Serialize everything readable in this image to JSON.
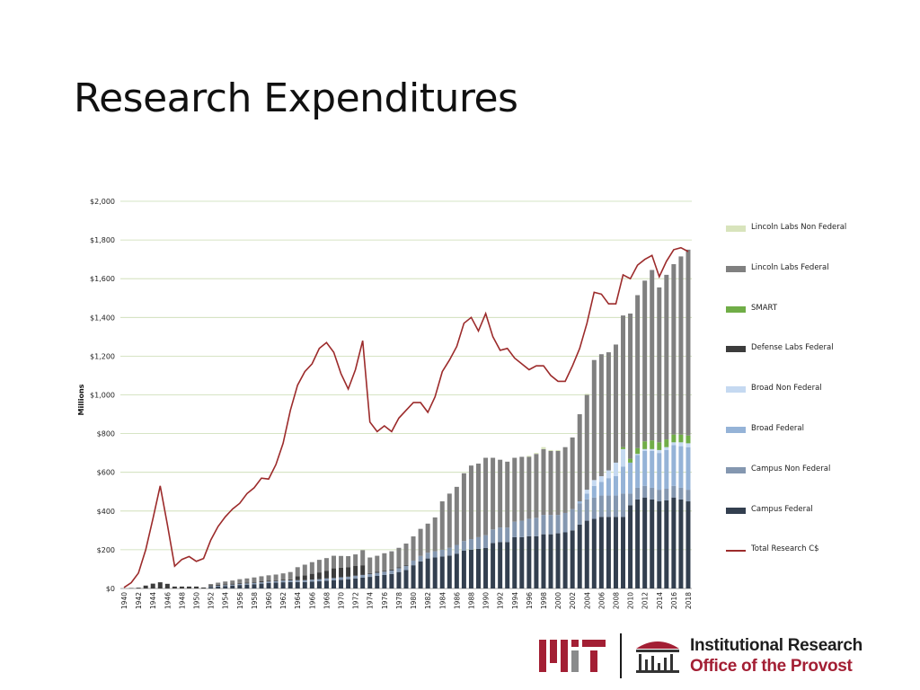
{
  "slide": {
    "title": "Research Expenditures"
  },
  "branding": {
    "logo_text": "MIT",
    "org_name": "Institutional Research",
    "org_sub": "Office of the Provost",
    "brand_red": "#a31f34",
    "brand_gray": "#8a8b8c"
  },
  "chart_data": {
    "type": "bar",
    "stacked": true,
    "ylabel": "Millions",
    "xlabel": "",
    "ylim": [
      0,
      2000
    ],
    "grid": true,
    "legend_position": "right",
    "y_ticks": [
      "$0",
      "$200",
      "$400",
      "$600",
      "$800",
      "$1,000",
      "$1,200",
      "$1,400",
      "$1,600",
      "$1,800",
      "$2,000"
    ],
    "x_tick_labels": [
      "1940",
      "1942",
      "1944",
      "1946",
      "1948",
      "1950",
      "1952",
      "1954",
      "1956",
      "1958",
      "1960",
      "1962",
      "1964",
      "1966",
      "1968",
      "1970",
      "1972",
      "1974",
      "1976",
      "1978",
      "1980",
      "1982",
      "1984",
      "1986",
      "1988",
      "1990",
      "1992",
      "1994",
      "1996",
      "1998",
      "2000",
      "2002",
      "2004",
      "2006",
      "2008",
      "2010",
      "2012",
      "2014",
      "2016",
      "2018"
    ],
    "years": [
      1940,
      1941,
      1942,
      1943,
      1944,
      1945,
      1946,
      1947,
      1948,
      1949,
      1950,
      1951,
      1952,
      1953,
      1954,
      1955,
      1956,
      1957,
      1958,
      1959,
      1960,
      1961,
      1962,
      1963,
      1964,
      1965,
      1966,
      1967,
      1968,
      1969,
      1970,
      1971,
      1972,
      1973,
      1974,
      1975,
      1976,
      1977,
      1978,
      1979,
      1980,
      1981,
      1982,
      1983,
      1984,
      1985,
      1986,
      1987,
      1988,
      1989,
      1990,
      1991,
      1992,
      1993,
      1994,
      1995,
      1996,
      1997,
      1998,
      1999,
      2000,
      2001,
      2002,
      2003,
      2004,
      2005,
      2006,
      2007,
      2008,
      2009,
      2010,
      2011,
      2012,
      2013,
      2014,
      2015,
      2016,
      2017,
      2018
    ],
    "series": [
      {
        "name": "Lincoln Labs Non Federal",
        "color": "#d8e4bc",
        "values": [
          0,
          0,
          0,
          0,
          0,
          0,
          0,
          0,
          0,
          0,
          0,
          0,
          0,
          0,
          0,
          0,
          0,
          0,
          0,
          0,
          0,
          0,
          0,
          0,
          0,
          0,
          0,
          0,
          0,
          0,
          0,
          0,
          0,
          0,
          0,
          0,
          0,
          0,
          0,
          0,
          0,
          0,
          0,
          0,
          0,
          0,
          0,
          0,
          0,
          0,
          0,
          0,
          0,
          0,
          0,
          0,
          5,
          5,
          10,
          5,
          5,
          0,
          0,
          0,
          5,
          0,
          0,
          0,
          0,
          0,
          0,
          0,
          0,
          0,
          0,
          0,
          0,
          0,
          0
        ]
      },
      {
        "name": "Lincoln Labs Federal",
        "color": "#808080",
        "values": [
          0,
          0,
          0,
          0,
          0,
          0,
          0,
          0,
          0,
          0,
          0,
          0,
          6,
          11,
          14,
          16,
          19,
          21,
          23,
          26,
          27,
          29,
          32,
          38,
          47,
          55,
          60,
          65,
          65,
          65,
          60,
          58,
          60,
          78,
          80,
          83,
          90,
          94,
          100,
          110,
          125,
          140,
          150,
          175,
          250,
          280,
          300,
          350,
          380,
          380,
          400,
          370,
          350,
          340,
          330,
          330,
          320,
          330,
          340,
          330,
          330,
          340,
          370,
          450,
          490,
          620,
          630,
          610,
          610,
          680,
          750,
          790,
          830,
          880,
          800,
          850,
          880,
          920,
          960
        ]
      },
      {
        "name": "SMART",
        "color": "#70ad47",
        "values": [
          0,
          0,
          0,
          0,
          0,
          0,
          0,
          0,
          0,
          0,
          0,
          0,
          0,
          0,
          0,
          0,
          0,
          0,
          0,
          0,
          0,
          0,
          0,
          0,
          0,
          0,
          0,
          0,
          0,
          0,
          0,
          0,
          0,
          0,
          0,
          0,
          0,
          0,
          0,
          0,
          0,
          0,
          0,
          0,
          0,
          0,
          0,
          0,
          0,
          0,
          0,
          0,
          0,
          0,
          0,
          0,
          0,
          0,
          0,
          0,
          0,
          0,
          0,
          0,
          0,
          0,
          0,
          0,
          0,
          10,
          20,
          30,
          40,
          45,
          40,
          40,
          40,
          40,
          40
        ]
      },
      {
        "name": "Defense Labs Federal",
        "color": "#3c3c3c",
        "values": [
          0,
          2,
          4,
          15,
          25,
          32,
          24,
          10,
          10,
          10,
          10,
          5,
          6,
          5,
          5,
          5,
          5,
          5,
          5,
          5,
          5,
          5,
          5,
          5,
          20,
          25,
          30,
          35,
          40,
          50,
          50,
          48,
          50,
          50,
          5,
          5,
          5,
          5,
          5,
          5,
          0,
          0,
          0,
          0,
          0,
          0,
          0,
          0,
          0,
          0,
          0,
          0,
          0,
          0,
          0,
          0,
          0,
          0,
          0,
          0,
          0,
          0,
          0,
          0,
          0,
          0,
          0,
          0,
          0,
          0,
          0,
          0,
          0,
          0,
          0,
          0,
          0,
          0,
          0
        ]
      },
      {
        "name": "Broad Non Federal",
        "color": "#c5d9f1",
        "values": [
          0,
          0,
          0,
          0,
          0,
          0,
          0,
          0,
          0,
          0,
          0,
          0,
          0,
          0,
          0,
          0,
          0,
          0,
          0,
          0,
          0,
          0,
          0,
          0,
          0,
          0,
          0,
          0,
          0,
          0,
          0,
          0,
          0,
          0,
          0,
          0,
          0,
          0,
          0,
          0,
          0,
          0,
          0,
          0,
          0,
          0,
          0,
          0,
          0,
          0,
          0,
          0,
          0,
          0,
          0,
          0,
          0,
          0,
          0,
          0,
          0,
          0,
          0,
          0,
          20,
          30,
          30,
          40,
          70,
          90,
          0,
          5,
          10,
          10,
          15,
          15,
          15,
          20,
          20
        ]
      },
      {
        "name": "Broad Federal",
        "color": "#95b3d7",
        "values": [
          0,
          0,
          0,
          0,
          0,
          0,
          0,
          0,
          0,
          0,
          0,
          0,
          0,
          0,
          0,
          0,
          0,
          0,
          0,
          0,
          0,
          0,
          0,
          0,
          0,
          0,
          0,
          0,
          0,
          0,
          0,
          0,
          0,
          0,
          0,
          0,
          0,
          0,
          0,
          0,
          0,
          0,
          0,
          0,
          0,
          0,
          0,
          0,
          0,
          0,
          0,
          0,
          0,
          0,
          0,
          0,
          0,
          0,
          0,
          0,
          0,
          0,
          0,
          10,
          30,
          60,
          70,
          90,
          100,
          140,
          160,
          170,
          180,
          190,
          190,
          200,
          210,
          215,
          220
        ]
      },
      {
        "name": "Campus Non Federal",
        "color": "#8497b0",
        "values": [
          0,
          0,
          0,
          0,
          0,
          0,
          0,
          0,
          0,
          0,
          0,
          0,
          3,
          4,
          5,
          5,
          6,
          6,
          7,
          7,
          8,
          8,
          9,
          9,
          10,
          10,
          11,
          11,
          12,
          12,
          13,
          13,
          14,
          14,
          15,
          16,
          17,
          18,
          20,
          22,
          24,
          28,
          30,
          32,
          35,
          40,
          45,
          50,
          55,
          60,
          65,
          70,
          75,
          75,
          80,
          85,
          90,
          95,
          100,
          100,
          95,
          100,
          110,
          110,
          110,
          110,
          110,
          110,
          110,
          120,
          60,
          60,
          60,
          60,
          60,
          60,
          60,
          60,
          60
        ]
      },
      {
        "name": "Campus Federal",
        "color": "#333f4f",
        "values": [
          0,
          0,
          0,
          0,
          0,
          0,
          0,
          0,
          0,
          0,
          0,
          0,
          8,
          10,
          12,
          15,
          18,
          20,
          22,
          25,
          28,
          30,
          32,
          33,
          33,
          33,
          35,
          37,
          40,
          42,
          45,
          48,
          52,
          56,
          60,
          65,
          70,
          75,
          85,
          95,
          120,
          140,
          155,
          160,
          165,
          170,
          180,
          195,
          200,
          205,
          210,
          235,
          240,
          240,
          265,
          265,
          270,
          270,
          280,
          280,
          285,
          290,
          300,
          330,
          350,
          360,
          370,
          370,
          370,
          370,
          430,
          460,
          470,
          460,
          450,
          455,
          470,
          460,
          450
        ]
      },
      {
        "name": "Total Research C$",
        "type": "line",
        "color": "#9c2b2b",
        "values": [
          5,
          30,
          80,
          200,
          360,
          530,
          330,
          115,
          150,
          165,
          140,
          155,
          250,
          320,
          370,
          410,
          440,
          490,
          520,
          570,
          565,
          640,
          750,
          920,
          1050,
          1120,
          1160,
          1240,
          1270,
          1220,
          1110,
          1030,
          1130,
          1280,
          860,
          810,
          840,
          810,
          880,
          920,
          960,
          960,
          910,
          990,
          1120,
          1180,
          1250,
          1370,
          1400,
          1330,
          1420,
          1300,
          1230,
          1240,
          1190,
          1160,
          1130,
          1150,
          1150,
          1100,
          1070,
          1070,
          1150,
          1240,
          1370,
          1530,
          1520,
          1470,
          1470,
          1620,
          1600,
          1670,
          1700,
          1720,
          1610,
          1690,
          1750,
          1760,
          1740
        ]
      }
    ]
  }
}
